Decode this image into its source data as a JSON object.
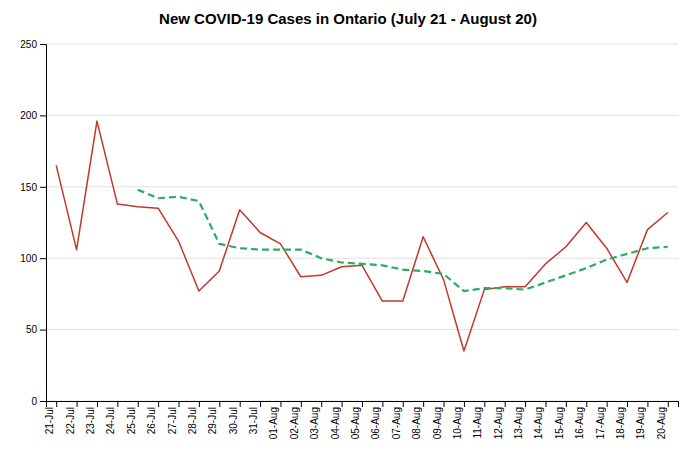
{
  "chart_data": {
    "type": "line",
    "title": "New COVID-19 Cases in Ontario (July 21 - August 20)",
    "categories": [
      "21-Jul",
      "22-Jul",
      "23-Jul",
      "24-Jul",
      "25-Jul",
      "26-Jul",
      "27-Jul",
      "28-Jul",
      "29-Jul",
      "30-Jul",
      "31-Jul",
      "01-Aug",
      "02-Aug",
      "03-Aug",
      "04-Aug",
      "05-Aug",
      "06-Aug",
      "07-Aug",
      "08-Aug",
      "09-Aug",
      "10-Aug",
      "11-Aug",
      "12-Aug",
      "13-Aug",
      "14-Aug",
      "15-Aug",
      "16-Aug",
      "17-Aug",
      "18-Aug",
      "19-Aug",
      "20-Aug"
    ],
    "series": [
      {
        "color": "#c0392b",
        "line_style": "solid",
        "values": [
          165,
          106,
          196,
          138,
          136,
          135,
          112,
          77,
          91,
          134,
          118,
          110,
          87,
          88,
          94,
          95,
          70,
          70,
          115,
          85,
          35,
          78,
          80,
          80,
          96,
          108,
          125,
          107,
          83,
          120,
          132
        ]
      },
      {
        "color": "#27ae60",
        "line_style": "dashed",
        "values": [
          null,
          null,
          null,
          null,
          148,
          142,
          143,
          140,
          110,
          107,
          106,
          106,
          106,
          100,
          97,
          96,
          95,
          92,
          91,
          89,
          77,
          79,
          79,
          78,
          83,
          88,
          93,
          99,
          103,
          107,
          108
        ]
      }
    ],
    "ylim": [
      0,
      250
    ],
    "yticks": [
      0,
      50,
      100,
      150,
      200,
      250
    ],
    "grid": true
  }
}
